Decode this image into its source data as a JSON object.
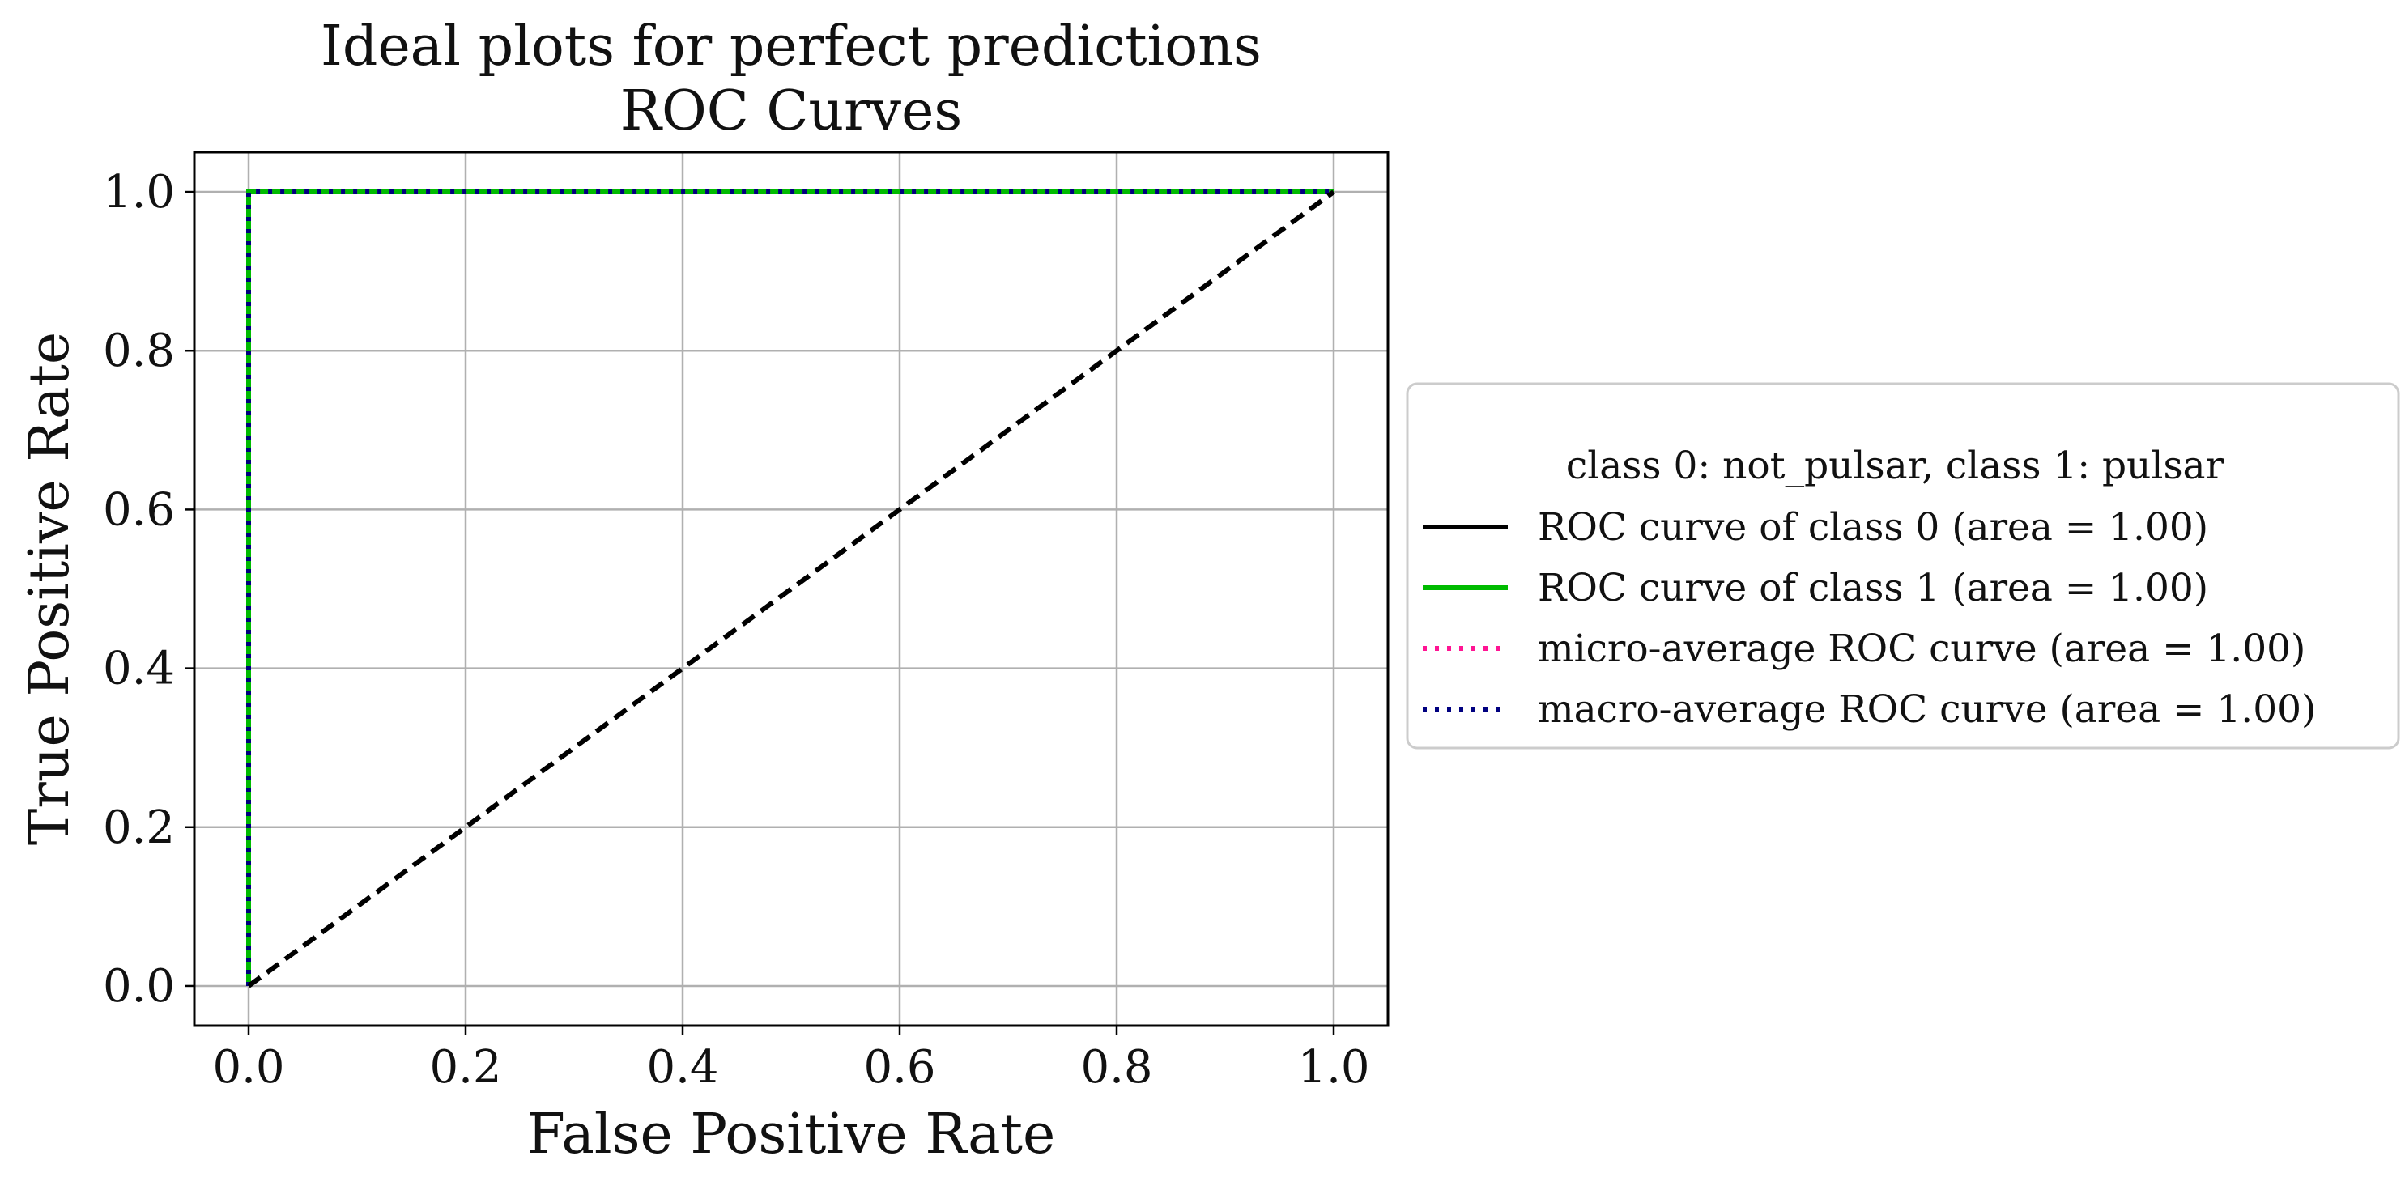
{
  "chart_data": {
    "type": "line",
    "title_lines": [
      "Ideal plots for perfect predictions",
      "ROC Curves"
    ],
    "xlabel": "False Positive Rate",
    "ylabel": "True Positive Rate",
    "xlim": [
      -0.05,
      1.05
    ],
    "ylim": [
      -0.05,
      1.05
    ],
    "xticks": [
      0.0,
      0.2,
      0.4,
      0.6,
      0.8,
      1.0
    ],
    "xtick_labels": [
      "0.0",
      "0.2",
      "0.4",
      "0.6",
      "0.8",
      "1.0"
    ],
    "yticks": [
      0.0,
      0.2,
      0.4,
      0.6,
      0.8,
      1.0
    ],
    "ytick_labels": [
      "0.0",
      "0.2",
      "0.4",
      "0.6",
      "0.8",
      "1.0"
    ],
    "grid": true,
    "legend": {
      "title": "class 0: not_pulsar, class 1: pulsar",
      "placement": "outside right"
    },
    "series": [
      {
        "name": "ROC curve of class 0 (area = 1.00)",
        "color": "#000000",
        "style": "solid",
        "x": [
          0.0,
          0.0,
          1.0
        ],
        "y": [
          0.0,
          1.0,
          1.0
        ]
      },
      {
        "name": "ROC curve of class 1 (area = 1.00)",
        "color": "#00bb00",
        "style": "solid",
        "x": [
          0.0,
          0.0,
          1.0
        ],
        "y": [
          0.0,
          1.0,
          1.0
        ]
      },
      {
        "name": "micro-average ROC curve (area = 1.00)",
        "color": "#ff1493",
        "style": "dotted",
        "x": [
          0.0,
          0.0,
          1.0
        ],
        "y": [
          0.0,
          1.0,
          1.0
        ]
      },
      {
        "name": "macro-average ROC curve (area = 1.00)",
        "color": "#000080",
        "style": "dotted",
        "x": [
          0.0,
          0.0,
          1.0
        ],
        "y": [
          0.0,
          1.0,
          1.0
        ]
      }
    ],
    "reference_line": {
      "color": "#000000",
      "style": "dashed",
      "x": [
        0.0,
        1.0
      ],
      "y": [
        0.0,
        1.0
      ]
    }
  }
}
